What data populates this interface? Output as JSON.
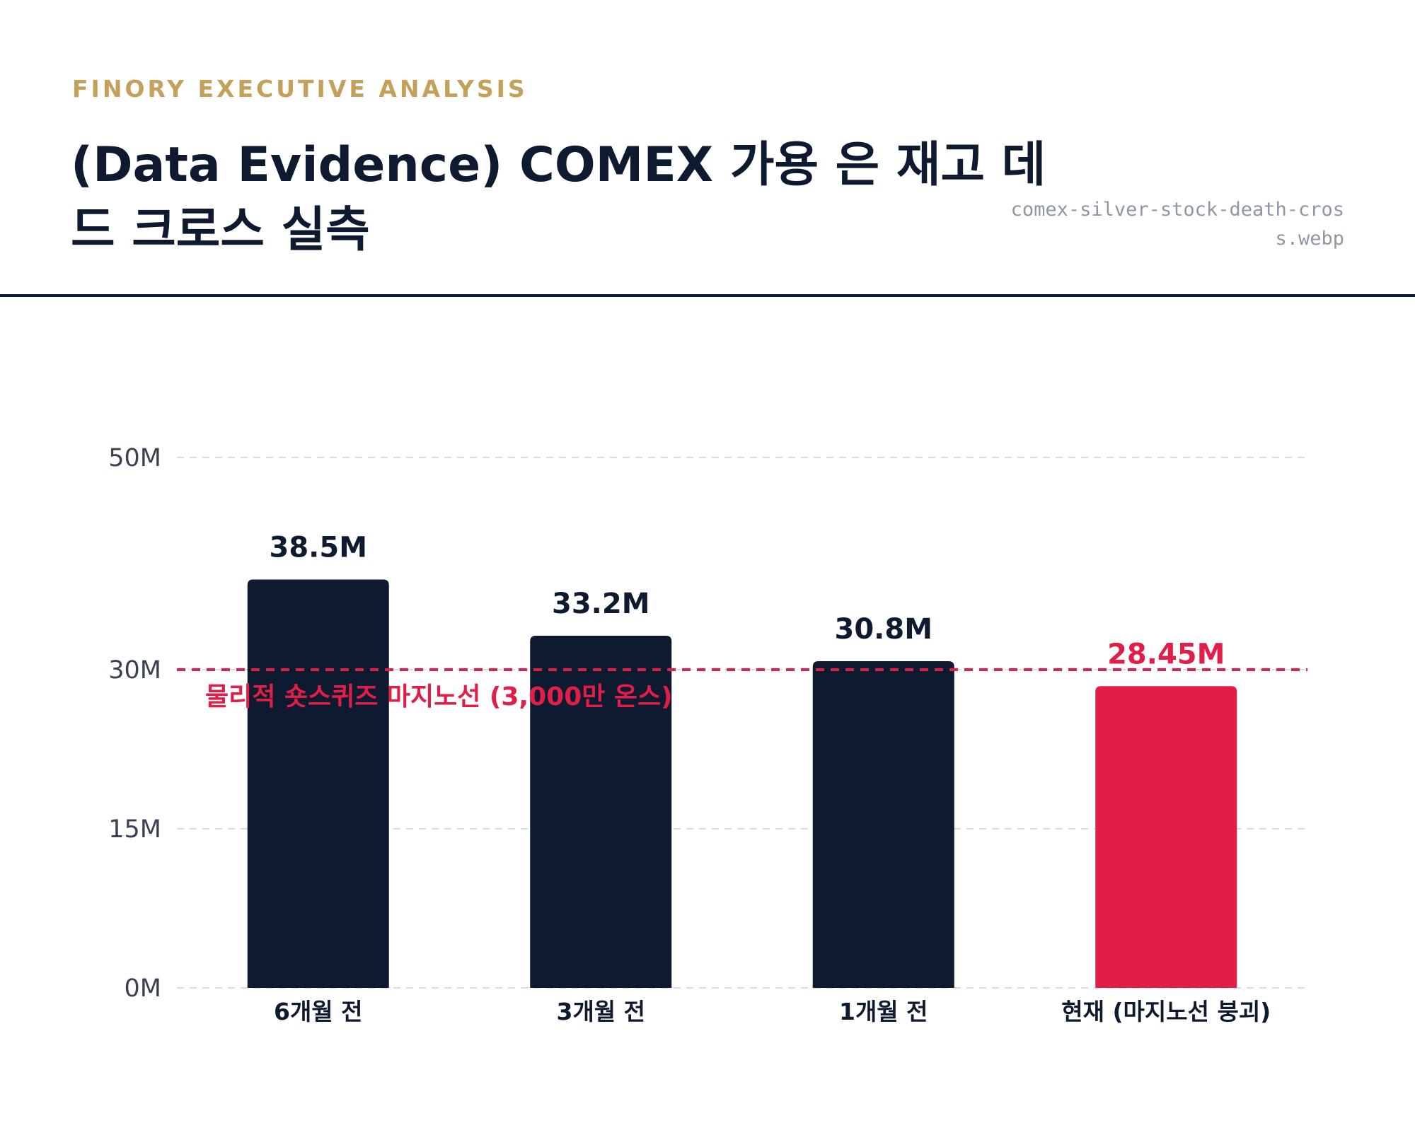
{
  "header": {
    "kicker": "FINORY EXECUTIVE ANALYSIS",
    "title": "(Data Evidence) COMEX 가용 은 재고 데드 크로스 실측",
    "filename": "comex-silver-stock-death-cross.webp"
  },
  "colors": {
    "bar": "#0d1a30",
    "highlight": "#e01e48",
    "grid": "#d9dce1",
    "accent": "#c4a15a"
  },
  "chart_data": {
    "type": "bar",
    "categories": [
      "6개월 전",
      "3개월 전",
      "1개월 전",
      "현재 (마지노선 붕괴)"
    ],
    "values": [
      38.5,
      33.2,
      30.8,
      28.45
    ],
    "value_labels": [
      "38.5M",
      "33.2M",
      "30.8M",
      "28.45M"
    ],
    "highlight_index": 3,
    "ylim": [
      0,
      50
    ],
    "yticks": [
      0,
      15,
      30,
      50
    ],
    "ytick_labels": [
      "0M",
      "15M",
      "30M",
      "50M"
    ],
    "grid": true,
    "reference_line": {
      "value": 30,
      "label": "물리적 숏스퀴즈 마지노선 (3,000만 온스)"
    }
  }
}
